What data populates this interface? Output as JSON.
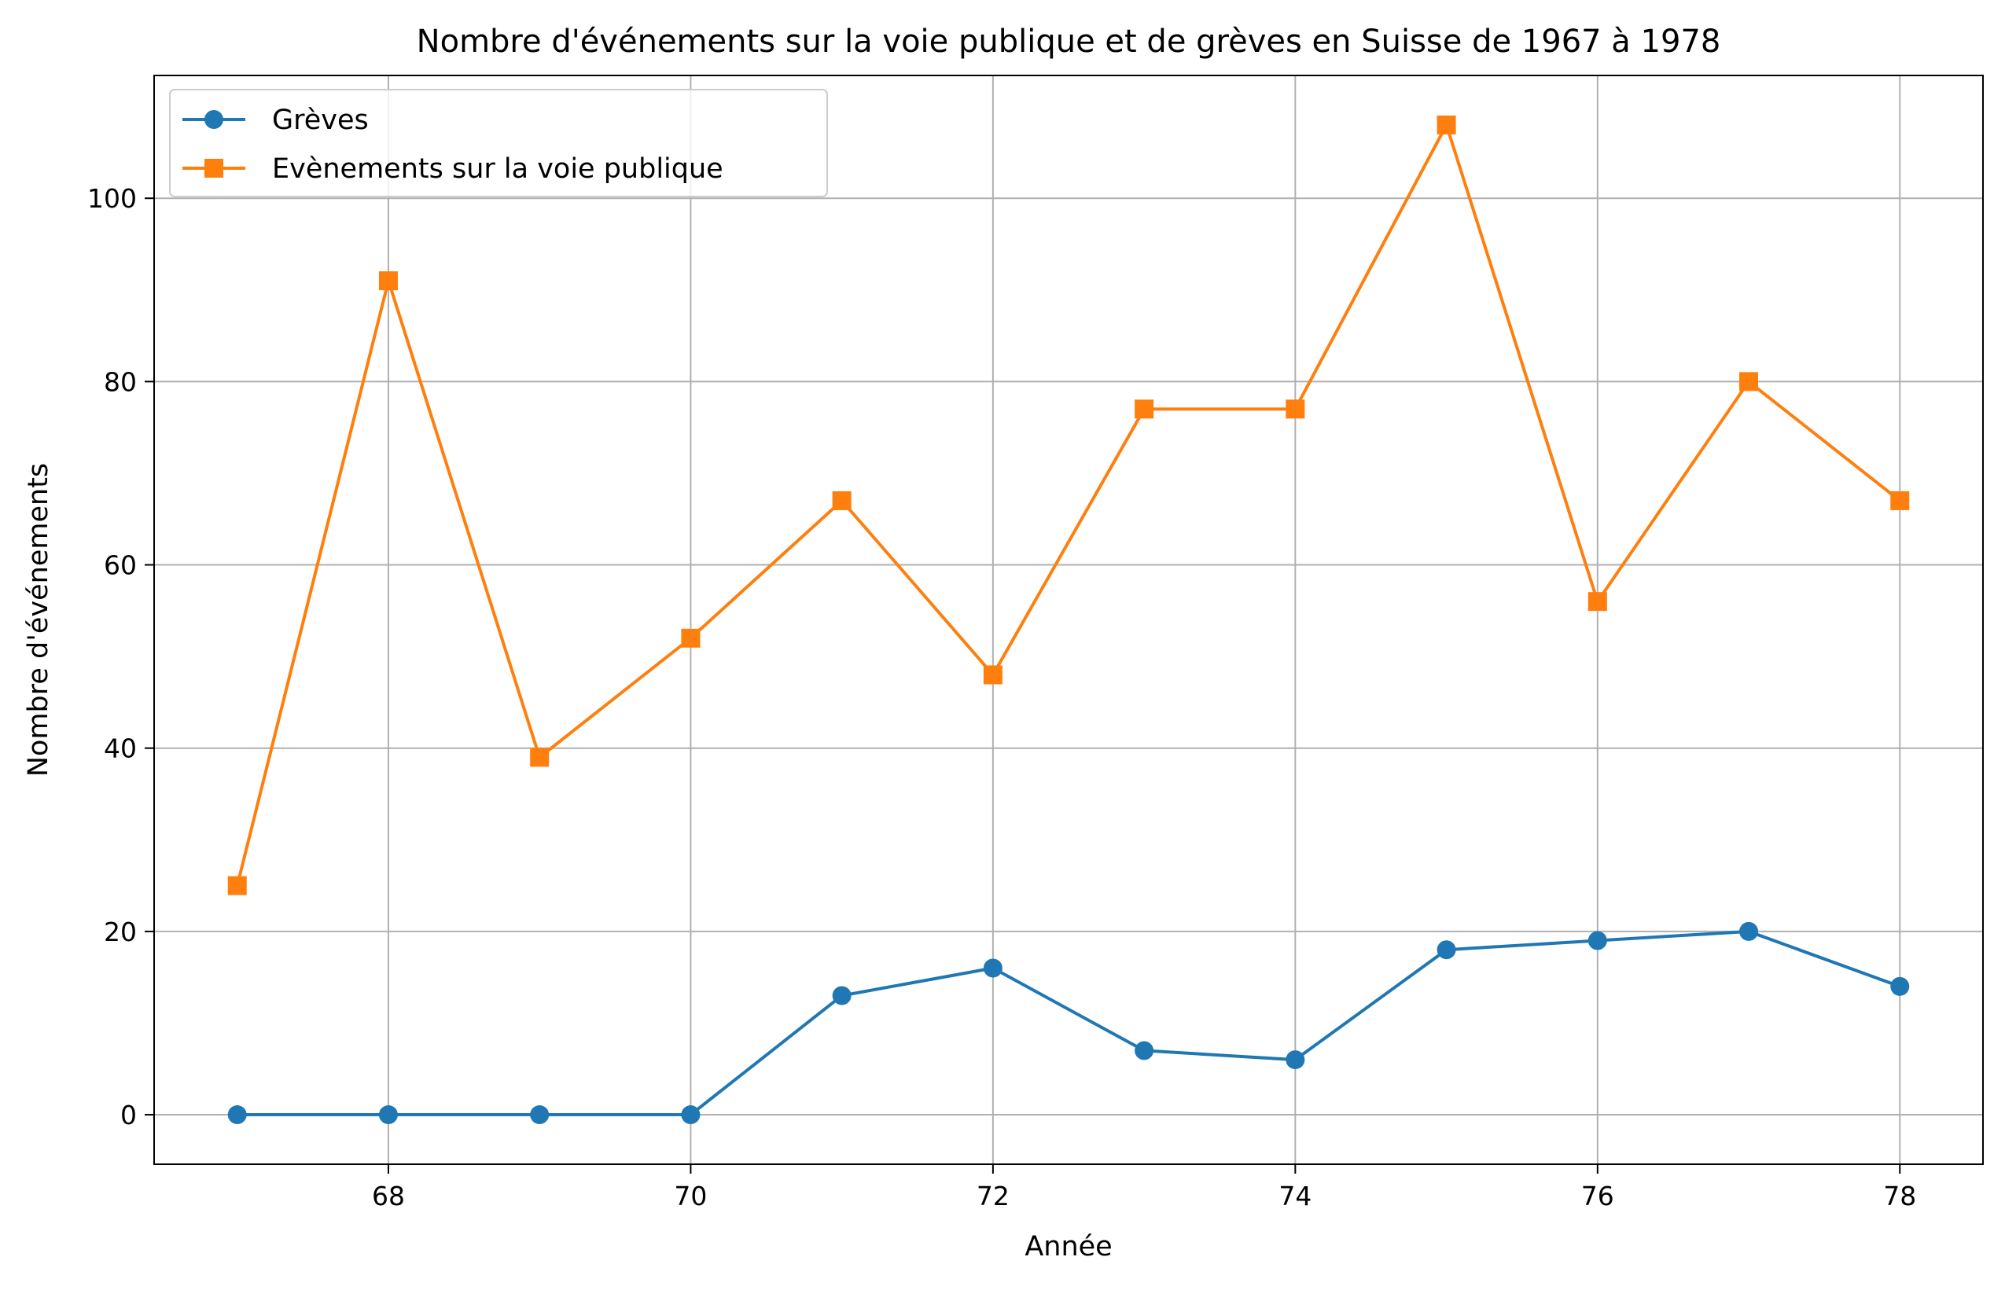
{
  "chart_data": {
    "type": "line",
    "title": "Nombre d'événements sur la voie publique et de grèves en Suisse de 1967 à 1978",
    "xlabel": "Année",
    "ylabel": "Nombre d'événements",
    "x": [
      67,
      68,
      69,
      70,
      71,
      72,
      73,
      74,
      75,
      76,
      77,
      78
    ],
    "xlim": [
      66.45,
      78.55
    ],
    "ylim": [
      -5.4,
      113.4
    ],
    "xticks": [
      68,
      70,
      72,
      74,
      76,
      78
    ],
    "yticks": [
      0,
      20,
      40,
      60,
      80,
      100
    ],
    "grid": true,
    "legend_position": "upper-left",
    "series": [
      {
        "name": "Grèves",
        "color": "#1f77b4",
        "marker": "circle",
        "values": [
          0,
          0,
          0,
          0,
          13,
          16,
          7,
          6,
          18,
          19,
          20,
          14
        ]
      },
      {
        "name": "Evènements sur la voie publique",
        "color": "#ff7f0e",
        "marker": "square",
        "values": [
          25,
          91,
          39,
          52,
          67,
          48,
          77,
          77,
          108,
          56,
          80,
          67
        ]
      }
    ]
  }
}
